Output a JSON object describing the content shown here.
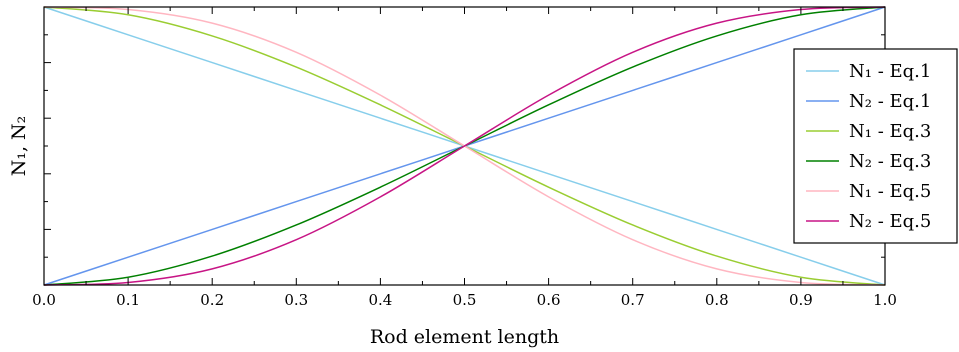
{
  "chart_data": {
    "type": "line",
    "title": "",
    "xlabel": "Rod element length",
    "ylabel": "N₁, N₂",
    "xlim": [
      0,
      1
    ],
    "ylim": [
      0,
      1
    ],
    "x_ticks": [
      "0.0",
      "0.1",
      "0.2",
      "0.3",
      "0.4",
      "0.5",
      "0.6",
      "0.7",
      "0.8",
      "0.9",
      "1.0"
    ],
    "y_ticks_labeled": false,
    "grid": false,
    "legend_position": "right",
    "x": [
      0.0,
      0.1,
      0.2,
      0.3,
      0.4,
      0.5,
      0.6,
      0.7,
      0.8,
      0.9,
      1.0
    ],
    "series": [
      {
        "name": "N₁ - Eq.1",
        "color": "#87ceeb",
        "values": [
          1.0,
          0.9,
          0.8,
          0.7,
          0.6,
          0.5,
          0.4,
          0.3,
          0.2,
          0.1,
          0.0
        ]
      },
      {
        "name": "N₂ - Eq.1",
        "color": "#6495ed",
        "values": [
          0.0,
          0.1,
          0.2,
          0.3,
          0.4,
          0.5,
          0.6,
          0.7,
          0.8,
          0.9,
          1.0
        ]
      },
      {
        "name": "N₁ - Eq.3",
        "color": "#9acd32",
        "values": [
          1.0,
          0.972,
          0.896,
          0.784,
          0.648,
          0.5,
          0.352,
          0.216,
          0.104,
          0.028,
          0.0
        ]
      },
      {
        "name": "N₂ - Eq.3",
        "color": "#008000",
        "values": [
          0.0,
          0.028,
          0.104,
          0.216,
          0.352,
          0.5,
          0.648,
          0.784,
          0.896,
          0.972,
          1.0
        ]
      },
      {
        "name": "N₁ - Eq.5",
        "color": "#ffb6c1",
        "values": [
          1.0,
          0.991,
          0.942,
          0.837,
          0.683,
          0.5,
          0.317,
          0.163,
          0.058,
          0.009,
          0.0
        ]
      },
      {
        "name": "N₂ - Eq.5",
        "color": "#c71585",
        "values": [
          0.0,
          0.009,
          0.058,
          0.163,
          0.317,
          0.5,
          0.683,
          0.837,
          0.942,
          0.991,
          1.0
        ]
      }
    ]
  }
}
